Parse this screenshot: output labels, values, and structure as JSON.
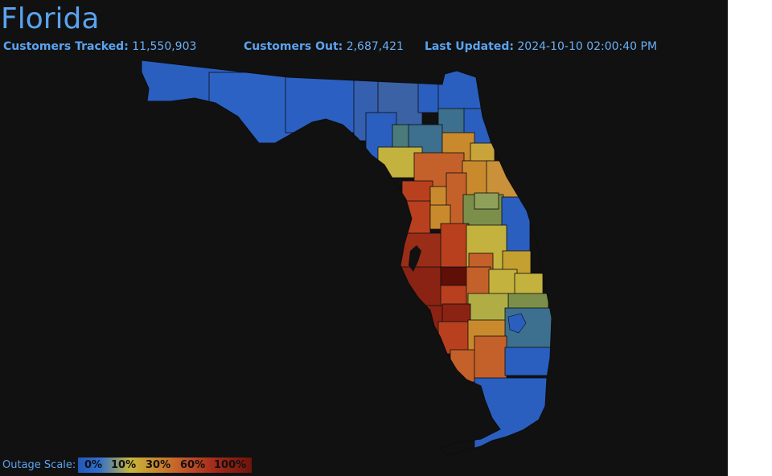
{
  "title": "Florida",
  "stats": {
    "tracked_label": "Customers Tracked:",
    "tracked_value": "11,550,903",
    "out_label": "Customers Out:",
    "out_value": "2,687,421",
    "updated_label": "Last Updated:",
    "updated_value": "2024-10-10 02:00:40 PM"
  },
  "legend": {
    "label": "Outage Scale:",
    "ticks": [
      "0%",
      "10%",
      "30%",
      "60%",
      "100%"
    ]
  },
  "colors": {
    "blue": "#2a5fc0",
    "steel": "#3d6f8e",
    "olive": "#7b8f4a",
    "yellow": "#c4b23e",
    "orange": "#c98a2d",
    "burnt": "#c4612a",
    "red": "#b8401f",
    "darkred": "#8a2313",
    "maroon": "#5e0f08"
  }
}
